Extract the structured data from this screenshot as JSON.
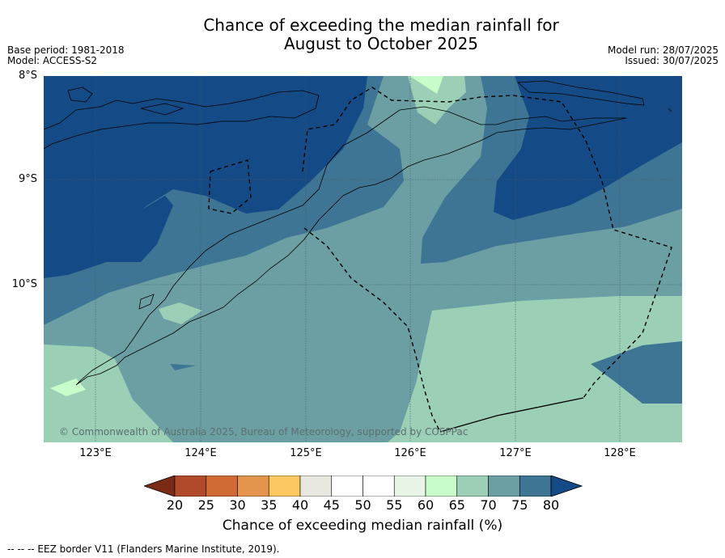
{
  "title_line1": "Chance of exceeding the median rainfall for",
  "title_line2": "August to October 2025",
  "meta_left": [
    "Base period: 1981-2018",
    "Model: ACCESS-S2"
  ],
  "meta_right": [
    "Model run: 28/07/2025",
    "Issued: 30/07/2025"
  ],
  "lat_labels": [
    "8°S",
    "9°S",
    "10°S"
  ],
  "lon_labels": [
    "123°E",
    "124°E",
    "125°E",
    "126°E",
    "127°E",
    "128°E"
  ],
  "copyright": "© Commonwealth of Australia 2025, Bureau of Meteorology, supported by COSPPac",
  "colorbar": {
    "ticks": [
      "20",
      "25",
      "30",
      "35",
      "40",
      "45",
      "50",
      "55",
      "60",
      "65",
      "70",
      "75",
      "80"
    ],
    "colors": [
      "#7a2b16",
      "#b04a2a",
      "#cf6a35",
      "#e4944c",
      "#fdc862",
      "#e8e8e0",
      "#ffffff",
      "#ffffff",
      "#e6f5e6",
      "#c8fcc8",
      "#9bcfb6",
      "#6b9fa3",
      "#3f7594",
      "#144a85"
    ],
    "label": "Chance of exceeding median rainfall (%)"
  },
  "source_note": "--  --  -- EEZ border V11 (Flanders Marine Institute, 2019)."
}
